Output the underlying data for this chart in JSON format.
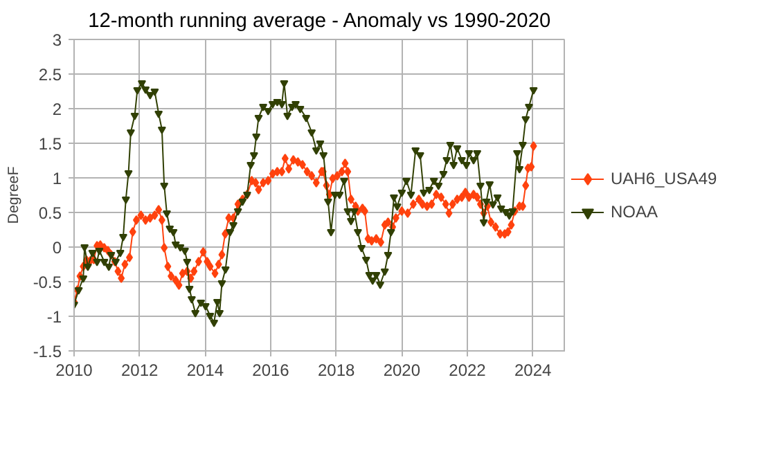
{
  "chart_data": {
    "type": "line",
    "title": "12-month running average - Anomaly vs 1990-2020",
    "ylabel": "DegreeF",
    "xlim": [
      2010,
      2025
    ],
    "xticks": [
      2010,
      2012,
      2014,
      2016,
      2018,
      2020,
      2022,
      2024
    ],
    "ylim": [
      -1.5,
      3
    ],
    "yticks": [
      -1.5,
      -1,
      -0.5,
      0,
      0.5,
      1,
      1.5,
      2,
      2.5,
      3
    ],
    "grid": true,
    "legend": "right",
    "line_style": "solid",
    "series": [
      {
        "name": "UAH6_USA49",
        "color": "#ff420e",
        "marker": "diamond",
        "x": [
          2010,
          2010.1,
          2010.18,
          2010.28,
          2010.38,
          2010.49,
          2010.6,
          2010.7,
          2010.8,
          2010.92,
          2011.03,
          2011.13,
          2011.24,
          2011.34,
          2011.44,
          2011.55,
          2011.69,
          2011.79,
          2011.9,
          2012.04,
          2012.18,
          2012.32,
          2012.46,
          2012.58,
          2012.68,
          2012.75,
          2012.86,
          2012.96,
          2013.1,
          2013.2,
          2013.31,
          2013.45,
          2013.56,
          2013.66,
          2013.8,
          2013.94,
          2014.06,
          2014.15,
          2014.3,
          2014.41,
          2014.51,
          2014.61,
          2014.72,
          2014.86,
          2015,
          2015.14,
          2015.28,
          2015.42,
          2015.54,
          2015.63,
          2015.77,
          2015.92,
          2016.06,
          2016.2,
          2016.34,
          2016.44,
          2016.55,
          2016.69,
          2016.83,
          2016.97,
          2017.11,
          2017.25,
          2017.39,
          2017.55,
          2017.6,
          2017.7,
          2017.79,
          2017.89,
          2018.03,
          2018.17,
          2018.27,
          2018.35,
          2018.45,
          2018.59,
          2018.66,
          2018.8,
          2018.87,
          2018.97,
          2019.08,
          2019.22,
          2019.36,
          2019.48,
          2019.58,
          2019.72,
          2019.82,
          2020,
          2020.18,
          2020.35,
          2020.52,
          2020.63,
          2020.77,
          2020.91,
          2021.05,
          2021.2,
          2021.34,
          2021.44,
          2021.55,
          2021.69,
          2021.83,
          2021.94,
          2022.05,
          2022.19,
          2022.3,
          2022.4,
          2022.5,
          2022.61,
          2022.72,
          2022.86,
          2023,
          2023.14,
          2023.24,
          2023.34,
          2023.45,
          2023.59,
          2023.69,
          2023.78,
          2023.85,
          2023.95,
          2024.02
        ],
        "values": [
          -0.79,
          -0.62,
          -0.42,
          -0.28,
          -0.19,
          -0.2,
          -0.18,
          0.02,
          0.03,
          -0.01,
          -0.05,
          -0.11,
          -0.21,
          -0.35,
          -0.45,
          -0.25,
          -0.15,
          0.22,
          0.39,
          0.46,
          0.39,
          0.42,
          0.46,
          0.54,
          0.39,
          -0.01,
          -0.28,
          -0.42,
          -0.48,
          -0.55,
          -0.38,
          -0.35,
          -0.45,
          -0.35,
          -0.21,
          -0.07,
          -0.21,
          -0.28,
          -0.38,
          -0.25,
          -0.11,
          0.19,
          0.42,
          0.42,
          0.62,
          0.69,
          0.76,
          0.96,
          0.93,
          0.83,
          0.93,
          0.96,
          1.06,
          1.09,
          1.09,
          1.28,
          1.13,
          1.26,
          1.23,
          1.19,
          1.09,
          1.03,
          0.93,
          1.09,
          1.09,
          0.89,
          0.76,
          0.99,
          1.03,
          1.09,
          1.21,
          1.09,
          0.69,
          0.59,
          0.52,
          0.56,
          0.52,
          0.12,
          0.09,
          0.12,
          0.07,
          0.32,
          0.36,
          0.29,
          0.42,
          0.52,
          0.49,
          0.62,
          0.69,
          0.62,
          0.59,
          0.62,
          0.76,
          0.72,
          0.62,
          0.49,
          0.62,
          0.69,
          0.72,
          0.79,
          0.72,
          0.76,
          0.72,
          0.62,
          0.49,
          0.59,
          0.36,
          0.29,
          0.19,
          0.19,
          0.22,
          0.32,
          0.52,
          0.59,
          0.59,
          0.89,
          1.14,
          1.16,
          1.46
        ]
      },
      {
        "name": "NOAA",
        "color": "#314004",
        "marker": "triangle",
        "x": [
          2010,
          2010.14,
          2010.28,
          2010.32,
          2010.42,
          2010.56,
          2010.7,
          2010.77,
          2010.92,
          2011.06,
          2011.13,
          2011.27,
          2011.41,
          2011.5,
          2011.58,
          2011.66,
          2011.73,
          2011.85,
          2011.93,
          2012.07,
          2012.18,
          2012.32,
          2012.46,
          2012.58,
          2012.68,
          2012.75,
          2012.83,
          2012.92,
          2013.03,
          2013.1,
          2013.24,
          2013.38,
          2013.45,
          2013.52,
          2013.59,
          2013.7,
          2013.87,
          2014.01,
          2014.15,
          2014.27,
          2014.37,
          2014.44,
          2014.51,
          2014.62,
          2014.76,
          2014.86,
          2015,
          2015.14,
          2015.28,
          2015.39,
          2015.49,
          2015.56,
          2015.63,
          2015.77,
          2015.92,
          2016.06,
          2016.2,
          2016.34,
          2016.41,
          2016.51,
          2016.65,
          2016.76,
          2016.9,
          2017.08,
          2017.25,
          2017.39,
          2017.51,
          2017.61,
          2017.75,
          2017.84,
          2017.96,
          2018.1,
          2018.24,
          2018.35,
          2018.45,
          2018.55,
          2018.66,
          2018.77,
          2018.91,
          2019.01,
          2019.11,
          2019.22,
          2019.34,
          2019.48,
          2019.58,
          2019.67,
          2019.76,
          2019.86,
          2020,
          2020.14,
          2020.28,
          2020.42,
          2020.56,
          2020.67,
          2020.84,
          2020.98,
          2021.12,
          2021.27,
          2021.37,
          2021.48,
          2021.58,
          2021.69,
          2021.83,
          2021.97,
          2022.05,
          2022.19,
          2022.3,
          2022.4,
          2022.5,
          2022.58,
          2022.68,
          2022.78,
          2022.92,
          2023.03,
          2023.17,
          2023.28,
          2023.38,
          2023.52,
          2023.59,
          2023.69,
          2023.78,
          2023.88,
          2024.02
        ],
        "values": [
          -0.83,
          -0.62,
          -0.45,
          0,
          -0.28,
          -0.08,
          -0.21,
          -0.05,
          -0.21,
          -0.28,
          -0.11,
          -0.21,
          -0.08,
          0.15,
          0.69,
          1.07,
          1.66,
          1.9,
          2.27,
          2.37,
          2.28,
          2.2,
          2.25,
          1.93,
          1.7,
          0.89,
          0.49,
          0.27,
          0.22,
          0.04,
          0,
          -0.05,
          -0.21,
          -0.6,
          -0.75,
          -0.95,
          -0.8,
          -0.85,
          -0.99,
          -1.09,
          -0.79,
          -0.95,
          -0.52,
          -0.32,
          0.22,
          0.32,
          0.52,
          0.66,
          0.76,
          1.19,
          1.33,
          1.6,
          1.87,
          2.03,
          1.97,
          2.07,
          2.1,
          2.07,
          2.37,
          1.9,
          2.03,
          2.07,
          2,
          1.87,
          1.66,
          1.4,
          1.5,
          1.33,
          0.66,
          0.22,
          0.76,
          0.76,
          0.96,
          0.52,
          0.38,
          0.52,
          0.22,
          -0.01,
          -0.18,
          -0.4,
          -0.48,
          -0.4,
          -0.54,
          -0.35,
          -0.11,
          0.22,
          0.72,
          0.59,
          0.79,
          0.96,
          0.76,
          1.4,
          1.33,
          0.79,
          0.83,
          0.96,
          0.89,
          1.06,
          1.26,
          1.48,
          1.19,
          1.43,
          1.26,
          1.19,
          1.36,
          1.26,
          1.36,
          0.89,
          0.36,
          0.66,
          0.91,
          0.62,
          0.72,
          0.56,
          0.51,
          0.46,
          0.52,
          1.36,
          1.13,
          1.48,
          1.85,
          2.03,
          2.27
        ]
      }
    ]
  }
}
